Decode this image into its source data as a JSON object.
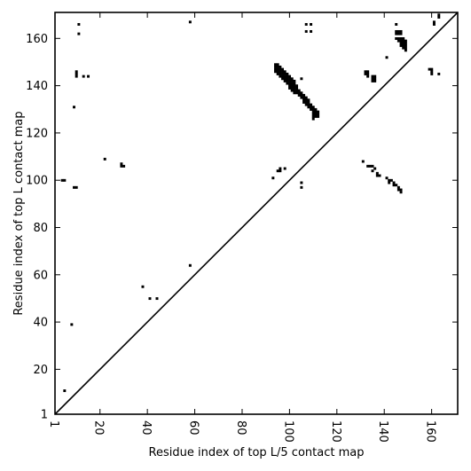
{
  "chart_data": {
    "type": "scatter",
    "xlabel": "Residue index of top L/5 contact map",
    "ylabel": "Residue index of top L contact map",
    "xlim": [
      1,
      171
    ],
    "ylim": [
      1,
      171
    ],
    "xticks": [
      1,
      20,
      40,
      60,
      80,
      100,
      120,
      140,
      160
    ],
    "yticks": [
      1,
      20,
      40,
      60,
      80,
      100,
      120,
      140,
      160
    ],
    "xtick_labels": [
      "1",
      "20",
      "40",
      "60",
      "80",
      "100",
      "120",
      "140",
      "160"
    ],
    "ytick_labels": [
      "1",
      "20",
      "40",
      "60",
      "80",
      "100",
      "120",
      "140",
      "160"
    ],
    "xtick_label_rotation": "vertical",
    "diagonal": true,
    "grid": false,
    "marker_color": "#000000",
    "upper_triangle_points": [
      [
        4,
        100
      ],
      [
        5,
        100
      ],
      [
        9,
        97
      ],
      [
        10,
        97
      ],
      [
        9,
        131
      ],
      [
        10,
        146
      ],
      [
        10,
        145
      ],
      [
        10,
        144
      ],
      [
        11,
        162
      ],
      [
        11,
        166
      ],
      [
        13,
        144
      ],
      [
        15,
        144
      ],
      [
        29,
        106
      ],
      [
        29,
        107
      ],
      [
        30,
        106
      ],
      [
        22,
        109
      ],
      [
        58,
        167
      ],
      [
        58,
        64
      ],
      [
        38,
        55
      ],
      [
        41,
        50
      ],
      [
        44,
        50
      ],
      [
        8,
        39
      ],
      [
        5,
        11
      ],
      [
        93,
        101
      ],
      [
        95,
        104
      ],
      [
        96,
        104
      ],
      [
        96,
        105
      ],
      [
        98,
        105
      ],
      [
        105,
        99
      ],
      [
        105,
        97
      ],
      [
        105,
        143
      ],
      [
        107,
        163
      ],
      [
        107,
        166
      ],
      [
        109,
        163
      ],
      [
        109,
        166
      ],
      [
        94,
        149
      ],
      [
        95,
        149
      ],
      [
        94,
        148
      ],
      [
        95,
        148
      ],
      [
        96,
        148
      ],
      [
        94,
        147
      ],
      [
        95,
        147
      ],
      [
        96,
        147
      ],
      [
        97,
        147
      ],
      [
        94,
        146
      ],
      [
        95,
        146
      ],
      [
        96,
        146
      ],
      [
        97,
        146
      ],
      [
        98,
        146
      ],
      [
        95,
        145
      ],
      [
        96,
        145
      ],
      [
        97,
        145
      ],
      [
        98,
        145
      ],
      [
        99,
        145
      ],
      [
        96,
        144
      ],
      [
        97,
        144
      ],
      [
        98,
        144
      ],
      [
        99,
        144
      ],
      [
        100,
        144
      ],
      [
        97,
        143
      ],
      [
        98,
        143
      ],
      [
        99,
        143
      ],
      [
        100,
        143
      ],
      [
        101,
        143
      ],
      [
        98,
        142
      ],
      [
        99,
        142
      ],
      [
        100,
        142
      ],
      [
        101,
        142
      ],
      [
        102,
        142
      ],
      [
        99,
        141
      ],
      [
        100,
        141
      ],
      [
        101,
        141
      ],
      [
        102,
        141
      ],
      [
        100,
        140
      ],
      [
        101,
        140
      ],
      [
        102,
        140
      ],
      [
        103,
        140
      ],
      [
        100,
        139
      ],
      [
        101,
        139
      ],
      [
        102,
        139
      ],
      [
        103,
        139
      ],
      [
        101,
        138
      ],
      [
        102,
        138
      ],
      [
        103,
        138
      ],
      [
        104,
        138
      ],
      [
        102,
        137
      ],
      [
        103,
        137
      ],
      [
        104,
        137
      ],
      [
        105,
        137
      ],
      [
        104,
        136
      ],
      [
        105,
        136
      ],
      [
        106,
        136
      ],
      [
        105,
        135
      ],
      [
        106,
        135
      ],
      [
        107,
        135
      ],
      [
        106,
        134
      ],
      [
        107,
        134
      ],
      [
        108,
        134
      ],
      [
        106,
        133
      ],
      [
        107,
        133
      ],
      [
        108,
        133
      ],
      [
        107,
        132
      ],
      [
        108,
        132
      ],
      [
        109,
        132
      ],
      [
        108,
        131
      ],
      [
        109,
        131
      ],
      [
        110,
        131
      ],
      [
        109,
        130
      ],
      [
        110,
        130
      ],
      [
        111,
        130
      ],
      [
        110,
        129
      ],
      [
        111,
        129
      ],
      [
        112,
        129
      ],
      [
        110,
        128
      ],
      [
        111,
        128
      ],
      [
        112,
        128
      ],
      [
        110,
        127
      ],
      [
        111,
        127
      ],
      [
        112,
        127
      ],
      [
        110,
        126
      ],
      [
        132,
        146
      ],
      [
        133,
        146
      ],
      [
        132,
        145
      ],
      [
        133,
        145
      ],
      [
        133,
        144
      ],
      [
        135,
        144
      ],
      [
        136,
        144
      ],
      [
        135,
        143
      ],
      [
        136,
        143
      ],
      [
        135,
        142
      ],
      [
        136,
        142
      ],
      [
        141,
        152
      ],
      [
        145,
        166
      ],
      [
        145,
        163
      ],
      [
        146,
        163
      ],
      [
        147,
        163
      ],
      [
        145,
        162
      ],
      [
        146,
        162
      ],
      [
        147,
        162
      ],
      [
        145,
        160
      ],
      [
        146,
        160
      ],
      [
        147,
        160
      ],
      [
        148,
        160
      ],
      [
        146,
        159
      ],
      [
        147,
        159
      ],
      [
        148,
        159
      ],
      [
        149,
        159
      ],
      [
        147,
        158
      ],
      [
        148,
        158
      ],
      [
        149,
        158
      ],
      [
        147,
        157
      ],
      [
        148,
        157
      ],
      [
        149,
        157
      ],
      [
        148,
        156
      ],
      [
        149,
        156
      ],
      [
        149,
        155
      ],
      [
        159,
        147
      ],
      [
        160,
        147
      ],
      [
        160,
        146
      ],
      [
        160,
        145
      ],
      [
        163,
        145
      ],
      [
        161,
        167
      ],
      [
        161,
        166
      ],
      [
        163,
        170
      ],
      [
        163,
        169
      ],
      [
        131,
        108
      ],
      [
        133,
        106
      ],
      [
        134,
        106
      ],
      [
        135,
        106
      ],
      [
        136,
        105
      ],
      [
        135,
        104
      ],
      [
        137,
        103
      ],
      [
        137,
        102
      ],
      [
        138,
        102
      ],
      [
        141,
        101
      ],
      [
        142,
        100
      ],
      [
        143,
        100
      ],
      [
        142,
        99
      ],
      [
        144,
        99
      ],
      [
        144,
        98
      ],
      [
        145,
        98
      ],
      [
        146,
        97
      ],
      [
        146,
        96
      ],
      [
        147,
        96
      ],
      [
        147,
        95
      ]
    ]
  }
}
